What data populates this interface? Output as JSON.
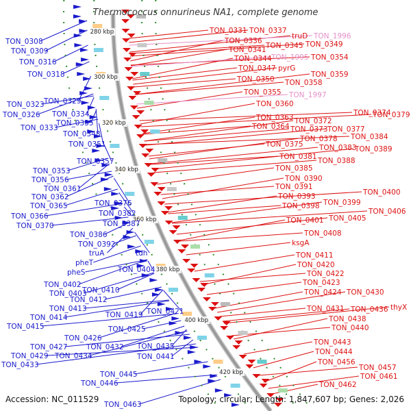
{
  "title": "Thermococcus onnurineus NA1, complete genome",
  "footer": {
    "accession": "Accession: NC_011529",
    "summary": "Topology: circular; Length: 1,847,607 bp; Genes: 2,026"
  },
  "colors": {
    "forward_strand": "#1a1acc",
    "reverse_strand": "#dd1111",
    "rna_gene": "#e58fc8",
    "backbone": "#9a9a9a",
    "kbp_ticks": "#2e8b2e"
  },
  "kbp_ticks": [
    "280 kbp",
    "300 kbp",
    "320 kbp",
    "340 kbp",
    "360 kbp",
    "380 kbp",
    "400 kbp",
    "420 kbp"
  ],
  "left_labels": [
    "TON_0308",
    "TON_0309",
    "TON_0316",
    "TON_0318",
    "TON_0323",
    "TON_0329",
    "TON_0326",
    "TON_0334",
    "TON_0335",
    "TON_0333",
    "TON_0348",
    "TON_0351",
    "TON_0357",
    "TON_0353",
    "TON_0356",
    "TON_0361",
    "TON_0362",
    "TON_0365",
    "TON_0366",
    "TON_0370",
    "TON_0376",
    "TON_0382",
    "TON_0387",
    "TON_0386",
    "TON_0392",
    "truA",
    "tdh",
    "pheT",
    "pheS",
    "TON_0404",
    "TON_0402",
    "TON_0403",
    "TON_0410",
    "TON_0412",
    "TON_0413",
    "TON_0419",
    "TON_0421",
    "TON_0414",
    "TON_0415",
    "TON_0425",
    "TON_0426",
    "TON_0432",
    "TON_0435",
    "TON_0427",
    "TON_0429",
    "TON_0434",
    "TON_0433",
    "TON_0441",
    "TON_0445",
    "TON_0446",
    "TON_0463"
  ],
  "right_labels": [
    "TON_0331",
    "TON_0337",
    "truD",
    "TON_0336",
    "TON_0345",
    "TON_0349",
    "TON_0341",
    "TON_0344",
    "TON_0354",
    "TON_0347",
    "pyrG",
    "TON_0359",
    "TON_0350",
    "TON_0358",
    "TON_0355",
    "TON_0360",
    "TON_0374",
    "TON_0379",
    "TON_0363",
    "TON_0372",
    "TON_0364",
    "TON_0373",
    "TON_0377",
    "TON_0378",
    "TON_0384",
    "TON_0375",
    "TON_0383",
    "TON_0389",
    "TON_0381",
    "TON_0388",
    "TON_0385",
    "TON_0390",
    "TON_0391",
    "TON_0400",
    "TON_0393",
    "TON_0399",
    "TON_0398",
    "TON_0406",
    "TON_0405",
    "TON_0401",
    "TON_0408",
    "ksgA",
    "TON_0411",
    "TON_0420",
    "TON_0422",
    "TON_0423",
    "TON_0424",
    "TON_0430",
    "TON_0431",
    "TON_0436",
    "thyX",
    "TON_0438",
    "TON_0440",
    "TON_0443",
    "TON_0444",
    "TON_0456",
    "TON_0457",
    "TON_0461",
    "TON_0462"
  ],
  "rna_labels": [
    "TON_1996",
    "TON_1995",
    "TON_1997"
  ]
}
